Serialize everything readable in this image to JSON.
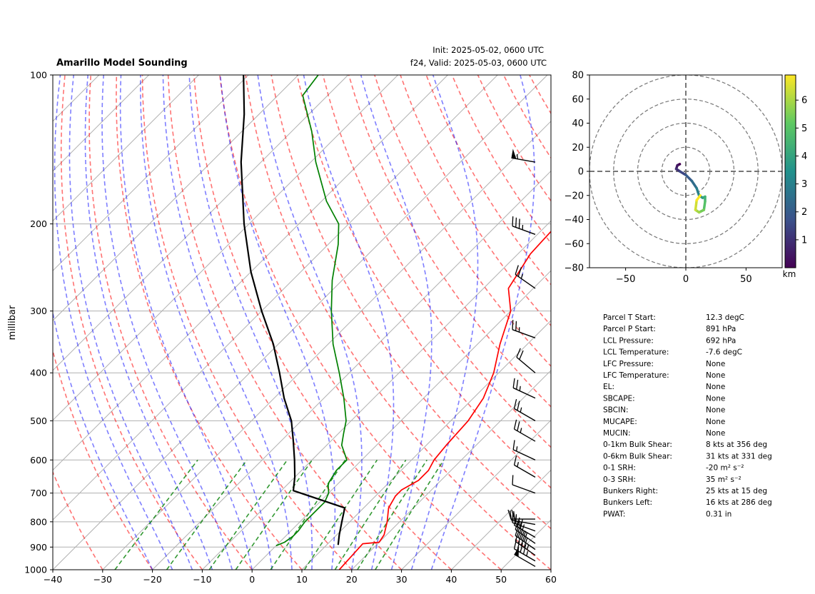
{
  "title": "Amarillo Model Sounding",
  "init_label": "Init: 2025-05-02, 0600 UTC",
  "valid_label": "f24, Valid: 2025-05-03, 0600 UTC",
  "chart_data": [
    {
      "type": "line",
      "name": "skew-t",
      "ylabel": "millibar",
      "xlim": [
        -40,
        60
      ],
      "ylim": [
        1000,
        100
      ],
      "y_scale": "log",
      "x_ticks": [
        -40,
        -30,
        -20,
        -10,
        0,
        10,
        20,
        30,
        40,
        50,
        60
      ],
      "y_ticks": [
        1000,
        900,
        800,
        700,
        600,
        500,
        400,
        300,
        200,
        100
      ],
      "grid": true,
      "series": [
        {
          "color": "#ff0000",
          "points": [
            [
              1000,
              17.5
            ],
            [
              886,
              17
            ],
            [
              880,
              20
            ],
            [
              850,
              19.5
            ],
            [
              800,
              17.5
            ],
            [
              750,
              15
            ],
            [
              710,
              14
            ],
            [
              690,
              14
            ],
            [
              660,
              15.5
            ],
            [
              630,
              15.5
            ],
            [
              600,
              14.5
            ],
            [
              560,
              14
            ],
            [
              500,
              13.5
            ],
            [
              450,
              12
            ],
            [
              400,
              9
            ],
            [
              350,
              4.5
            ],
            [
              300,
              0
            ],
            [
              270,
              -5
            ],
            [
              230,
              -7.5
            ],
            [
              200,
              -8
            ],
            [
              180,
              -10
            ],
            [
              160,
              -15
            ],
            [
              140,
              -20
            ],
            [
              120,
              -28
            ],
            [
              100,
              -38
            ]
          ]
        },
        {
          "color": "#008000",
          "points": [
            [
              894,
              0
            ],
            [
              880,
              1
            ],
            [
              855,
              1.5
            ],
            [
              835,
              1.5
            ],
            [
              800,
              1
            ],
            [
              760,
              1
            ],
            [
              730,
              1
            ],
            [
              700,
              0
            ],
            [
              670,
              -2
            ],
            [
              630,
              -3
            ],
            [
              600,
              -3
            ],
            [
              560,
              -7
            ],
            [
              530,
              -9
            ],
            [
              500,
              -11
            ],
            [
              450,
              -16
            ],
            [
              400,
              -22
            ],
            [
              350,
              -29
            ],
            [
              300,
              -36
            ],
            [
              260,
              -42
            ],
            [
              220,
              -48
            ],
            [
              200,
              -52
            ],
            [
              180,
              -59
            ],
            [
              150,
              -69
            ],
            [
              130,
              -76
            ],
            [
              110,
              -85
            ],
            [
              100,
              -86
            ]
          ]
        },
        {
          "color": "#000000",
          "points": [
            [
              891,
              12.3
            ],
            [
              850,
              10.5
            ],
            [
              800,
              8.4
            ],
            [
              750,
              6.2
            ],
            [
              692,
              -7.6
            ],
            [
              650,
              -10
            ],
            [
              600,
              -13.5
            ],
            [
              550,
              -17.5
            ],
            [
              500,
              -22
            ],
            [
              450,
              -28
            ],
            [
              400,
              -34
            ],
            [
              350,
              -41
            ],
            [
              300,
              -50
            ],
            [
              250,
              -60
            ],
            [
              200,
              -71
            ],
            [
              150,
              -84
            ],
            [
              120,
              -93
            ],
            [
              100,
              -101
            ]
          ]
        }
      ],
      "wind_barbs": [
        {
          "p": 985,
          "speed": 50,
          "dir": 300
        },
        {
          "p": 960,
          "speed": 45,
          "dir": 300
        },
        {
          "p": 935,
          "speed": 45,
          "dir": 305
        },
        {
          "p": 910,
          "speed": 40,
          "dir": 305
        },
        {
          "p": 885,
          "speed": 35,
          "dir": 305
        },
        {
          "p": 860,
          "speed": 30,
          "dir": 300
        },
        {
          "p": 835,
          "speed": 25,
          "dir": 290
        },
        {
          "p": 810,
          "speed": 20,
          "dir": 280
        },
        {
          "p": 790,
          "speed": 20,
          "dir": 270
        },
        {
          "p": 700,
          "speed": 10,
          "dir": 290
        },
        {
          "p": 650,
          "speed": 15,
          "dir": 300
        },
        {
          "p": 600,
          "speed": 15,
          "dir": 295
        },
        {
          "p": 550,
          "speed": 25,
          "dir": 300
        },
        {
          "p": 500,
          "speed": 25,
          "dir": 300
        },
        {
          "p": 450,
          "speed": 25,
          "dir": 295
        },
        {
          "p": 400,
          "speed": 20,
          "dir": 310
        },
        {
          "p": 340,
          "speed": 25,
          "dir": 290
        },
        {
          "p": 270,
          "speed": 25,
          "dir": 305
        },
        {
          "p": 210,
          "speed": 35,
          "dir": 290
        },
        {
          "p": 150,
          "speed": 55,
          "dir": 280
        }
      ]
    },
    {
      "type": "line",
      "name": "hodograph",
      "xlim": [
        -80,
        80
      ],
      "ylim": [
        -80,
        80
      ],
      "x_ticks": [
        -50,
        0,
        50
      ],
      "y_ticks": [
        80,
        60,
        40,
        20,
        0,
        -20,
        -40,
        -60,
        -80
      ],
      "rings": [
        20,
        40,
        60,
        80
      ],
      "points": [
        [
          -5,
          6
        ],
        [
          -7,
          5
        ],
        [
          -8,
          2
        ],
        [
          -5,
          0
        ],
        [
          0,
          -3
        ],
        [
          5,
          -8
        ],
        [
          9,
          -14
        ],
        [
          11,
          -20
        ],
        [
          14,
          -22
        ],
        [
          16,
          -21
        ],
        [
          16,
          -25
        ],
        [
          15,
          -32
        ],
        [
          11,
          -34
        ],
        [
          8,
          -32
        ],
        [
          9,
          -24
        ],
        [
          12,
          -20
        ]
      ],
      "colorbar": {
        "label": "km",
        "ticks": [
          1,
          2,
          3,
          4,
          5,
          6
        ],
        "range": [
          0,
          6.9
        ]
      }
    }
  ],
  "parameters": [
    {
      "label": "Parcel T Start:",
      "value": "12.3 degC"
    },
    {
      "label": "Parcel P Start:",
      "value": "891 hPa"
    },
    {
      "label": "LCL Pressure:",
      "value": "692 hPa"
    },
    {
      "label": "LCL Temperature:",
      "value": "-7.6 degC"
    },
    {
      "label": "LFC Pressure:",
      "value": "None"
    },
    {
      "label": "LFC Temperature:",
      "value": "None"
    },
    {
      "label": "EL:",
      "value": "None"
    },
    {
      "label": "SBCAPE:",
      "value": "None"
    },
    {
      "label": "SBCIN:",
      "value": "None"
    },
    {
      "label": "MUCAPE:",
      "value": "None"
    },
    {
      "label": "MUCIN:",
      "value": "None"
    },
    {
      "label": "0-1km Bulk Shear:",
      "value": "8 kts at 356 deg"
    },
    {
      "label": "0-6km Bulk Shear:",
      "value": "31 kts at 331 deg"
    },
    {
      "label": "0-1 SRH:",
      "value": "-20 m² s⁻²"
    },
    {
      "label": "0-3 SRH:",
      "value": "35 m² s⁻²"
    },
    {
      "label": "Bunkers Right:",
      "value": "25 kts at 15 deg"
    },
    {
      "label": "Bunkers Left:",
      "value": "16 kts at 286 deg"
    },
    {
      "label": "PWAT:",
      "value": "0.31 in"
    }
  ]
}
